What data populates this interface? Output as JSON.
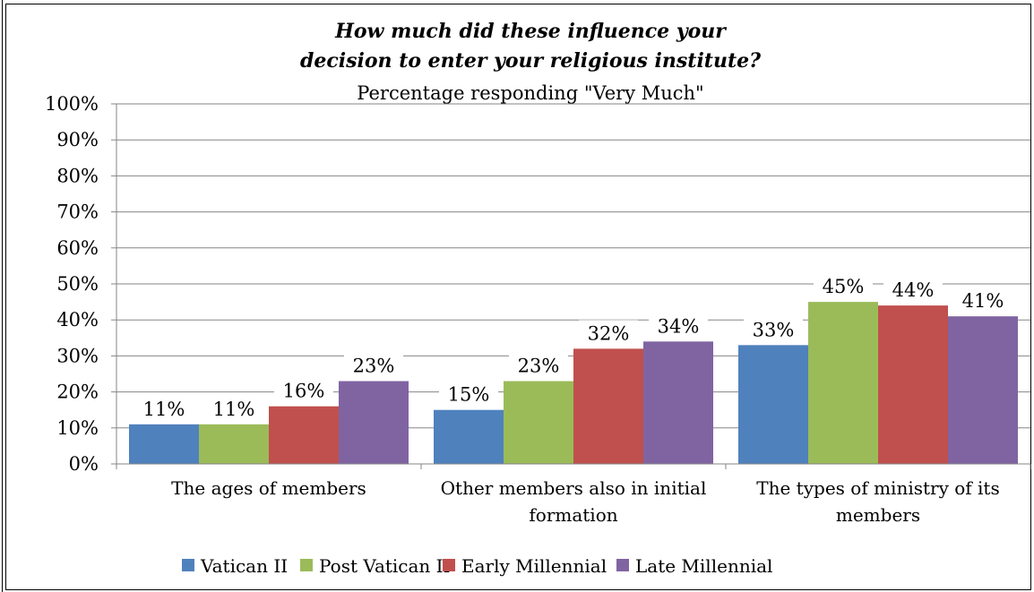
{
  "chart_data": {
    "type": "bar",
    "title_lines": [
      "How much did these influence your",
      "decision to enter your religious institute?"
    ],
    "subtitle": "Percentage responding \"Very Much\"",
    "categories": [
      [
        "The ages of members"
      ],
      [
        "Other members also in initial",
        "formation"
      ],
      [
        "The types of ministry of its",
        "members"
      ]
    ],
    "series": [
      {
        "name": "Vatican II",
        "color": "#4F81BD",
        "values": [
          11,
          15,
          33
        ]
      },
      {
        "name": "Post Vatican II",
        "color": "#9BBB59",
        "values": [
          11,
          23,
          45
        ]
      },
      {
        "name": "Early Millennial",
        "color": "#C0504D",
        "values": [
          16,
          32,
          44
        ]
      },
      {
        "name": "Late Millennial",
        "color": "#8064A2",
        "values": [
          23,
          34,
          41
        ]
      }
    ],
    "ylim": [
      0,
      100
    ],
    "yticks": [
      0,
      10,
      20,
      30,
      40,
      50,
      60,
      70,
      80,
      90,
      100
    ],
    "value_suffix": "%",
    "grid": true,
    "legend_position": "bottom"
  }
}
